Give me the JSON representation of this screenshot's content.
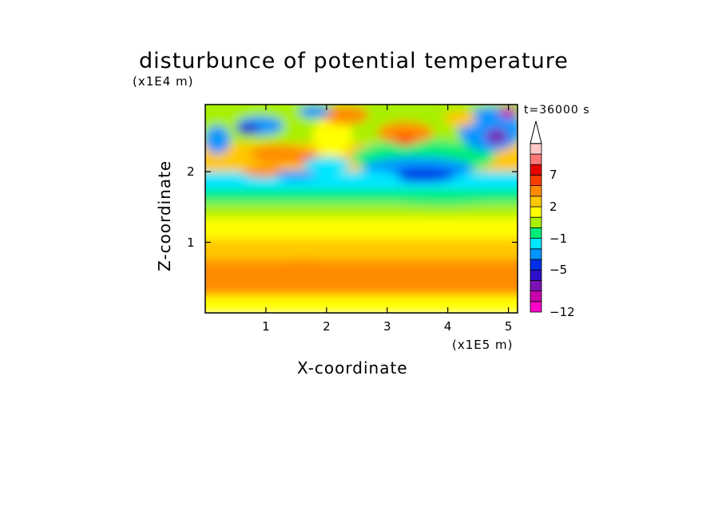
{
  "chart_data": {
    "type": "heatmap",
    "title": "disturbunce of potential temperature",
    "y_unit_label": "(x1E4 m)",
    "x_unit_label": "(x1E5 m)",
    "time_label": "t=36000 s",
    "xlabel": "X-coordinate",
    "ylabel": "Z-coordinate",
    "xlim": [
      0,
      5.15
    ],
    "ylim": [
      0,
      2.95
    ],
    "x_ticks": [
      "1",
      "2",
      "3",
      "4",
      "5"
    ],
    "y_ticks": [
      "1",
      "2"
    ],
    "colorbar": {
      "tick_labels": [
        "7",
        "2",
        "-1",
        "-5",
        "-12"
      ],
      "bins": [
        {
          "lo": -12,
          "hi": -10,
          "color": "#ff00c8"
        },
        {
          "lo": -10,
          "hi": -8,
          "color": "#c800aa"
        },
        {
          "lo": -8,
          "hi": -6,
          "color": "#7a12b4"
        },
        {
          "lo": -6,
          "hi": -5,
          "color": "#2c10c8"
        },
        {
          "lo": -5,
          "hi": -3,
          "color": "#0030e6"
        },
        {
          "lo": -3,
          "hi": -2,
          "color": "#0096ff"
        },
        {
          "lo": -2,
          "hi": -1,
          "color": "#00e6ff"
        },
        {
          "lo": -1,
          "hi": 0,
          "color": "#00ee7a"
        },
        {
          "lo": 0,
          "hi": 1,
          "color": "#a8f000"
        },
        {
          "lo": 1,
          "hi": 2,
          "color": "#ffff00"
        },
        {
          "lo": 2,
          "hi": 3,
          "color": "#ffc800"
        },
        {
          "lo": 3,
          "hi": 5,
          "color": "#ff8c00"
        },
        {
          "lo": 5,
          "hi": 7,
          "color": "#ff3c00"
        },
        {
          "lo": 7,
          "hi": 8,
          "color": "#e60000"
        },
        {
          "lo": 8,
          "hi": 9,
          "color": "#ff7878"
        },
        {
          "lo": 9,
          "hi": 10,
          "color": "#ffc8c8"
        }
      ]
    }
  }
}
